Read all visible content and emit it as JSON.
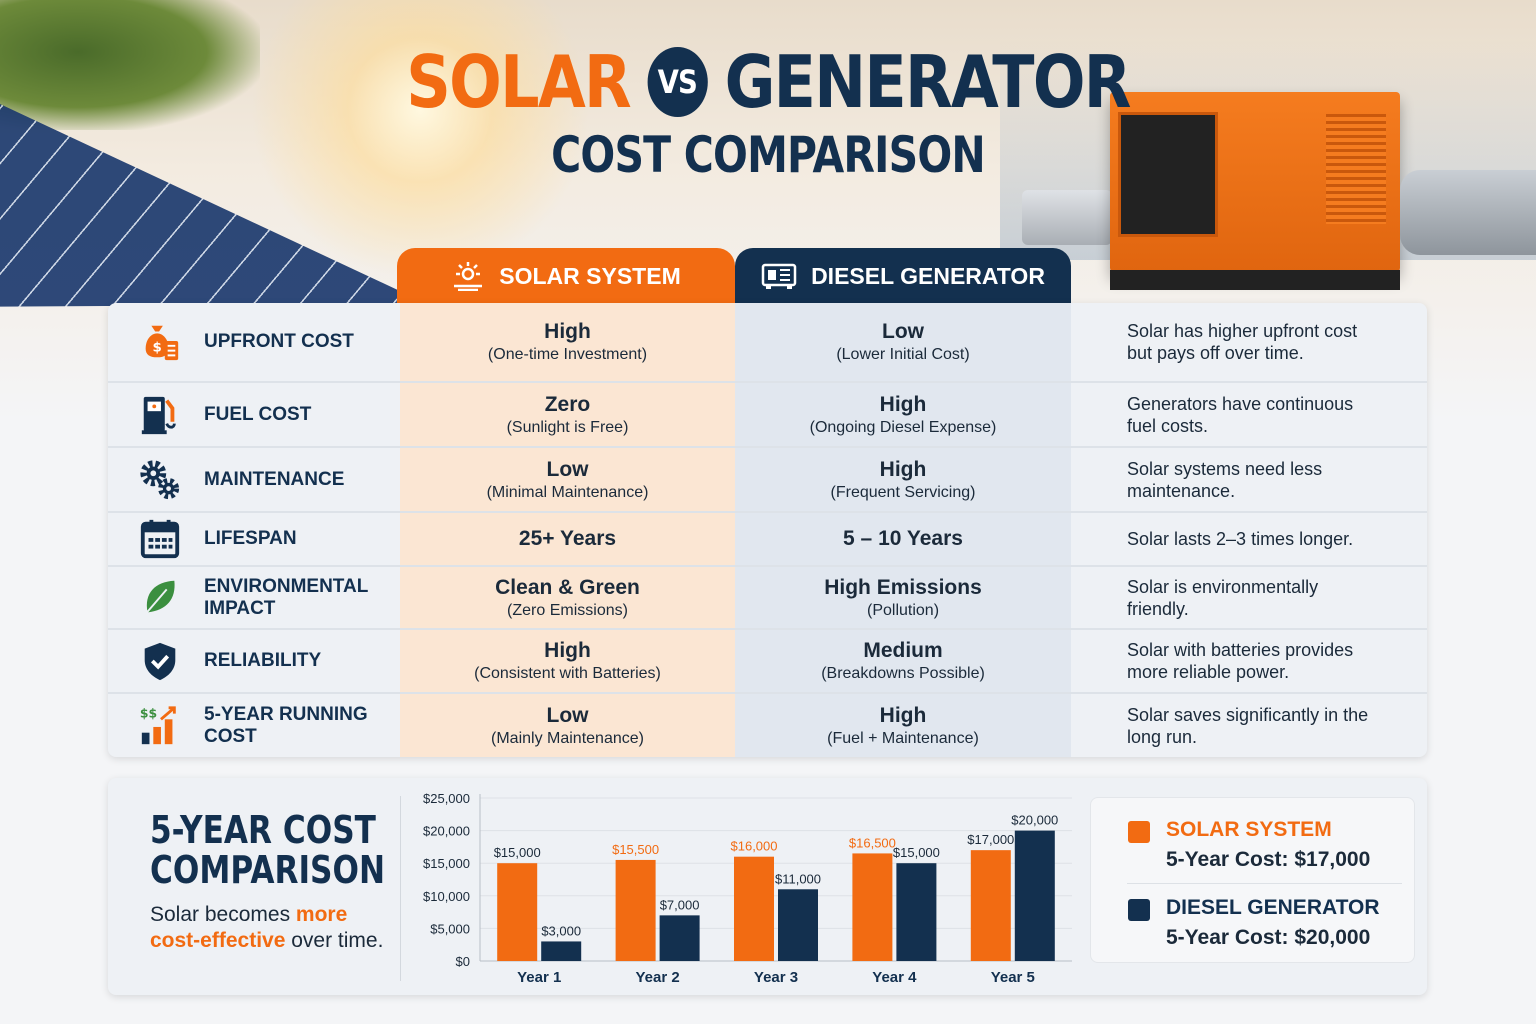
{
  "header": {
    "title_solar": "SOLAR",
    "vs": "VS",
    "title_generator": "GENERATOR",
    "subtitle": "COST COMPARISON"
  },
  "columns": {
    "solar": "SOLAR SYSTEM",
    "diesel": "DIESEL GENERATOR"
  },
  "colors": {
    "solar": "#f26b12",
    "diesel": "#13304f"
  },
  "rows": [
    {
      "icon": "money-bag-icon",
      "label": "UPFRONT COST",
      "solar_main": "High",
      "solar_sub": "(One-time Investment)",
      "diesel_main": "Low",
      "diesel_sub": "(Lower Initial Cost)",
      "note": "Solar has higher upfront cost but pays off over time."
    },
    {
      "icon": "fuel-pump-icon",
      "label": "FUEL COST",
      "solar_main": "Zero",
      "solar_sub": "(Sunlight is Free)",
      "diesel_main": "High",
      "diesel_sub": "(Ongoing Diesel Expense)",
      "note": "Generators have continuous fuel costs."
    },
    {
      "icon": "gears-icon",
      "label": "MAINTENANCE",
      "solar_main": "Low",
      "solar_sub": "(Minimal Maintenance)",
      "diesel_main": "High",
      "diesel_sub": "(Frequent Servicing)",
      "note": "Solar systems need less maintenance."
    },
    {
      "icon": "calendar-icon",
      "label": "LIFESPAN",
      "solar_main": "25+ Years",
      "solar_sub": "",
      "diesel_main": "5 – 10 Years",
      "diesel_sub": "",
      "note": "Solar lasts 2–3 times longer."
    },
    {
      "icon": "leaf-icon",
      "label": "ENVIRONMENTAL IMPACT",
      "solar_main": "Clean & Green",
      "solar_sub": "(Zero Emissions)",
      "diesel_main": "High Emissions",
      "diesel_sub": "(Pollution)",
      "note": "Solar is environmentally friendly."
    },
    {
      "icon": "shield-check-icon",
      "label": "RELIABILITY",
      "solar_main": "High",
      "solar_sub": "(Consistent with Batteries)",
      "diesel_main": "Medium",
      "diesel_sub": "(Breakdowns Possible)",
      "note": "Solar with batteries provides more reliable power."
    },
    {
      "icon": "growth-chart-icon",
      "label": "5-YEAR RUNNING COST",
      "solar_main": "Low",
      "solar_sub": "(Mainly Maintenance)",
      "diesel_main": "High",
      "diesel_sub": "(Fuel + Maintenance)",
      "note": "Solar saves significantly in the long run."
    }
  ],
  "summary": {
    "title_line1": "5-YEAR COST",
    "title_line2": "COMPARISON",
    "text_pre": "Solar becomes ",
    "text_hl1": "more",
    "text_hl2": "cost-effective",
    "text_post": " over time."
  },
  "legend": {
    "solar_name": "SOLAR SYSTEM",
    "solar_value": "5-Year Cost: $17,000",
    "diesel_name": "DIESEL GENERATOR",
    "diesel_value": "5-Year Cost: $20,000"
  },
  "chart_data": {
    "type": "bar",
    "categories": [
      "Year 1",
      "Year 2",
      "Year 3",
      "Year 4",
      "Year 5"
    ],
    "series": [
      {
        "name": "SOLAR SYSTEM",
        "values": [
          15000,
          15500,
          16000,
          16500,
          17000
        ],
        "labels": [
          "$15,000",
          "$15,500",
          "$16,000",
          "$16,500",
          "$17,000"
        ]
      },
      {
        "name": "DIESEL GENERATOR",
        "values": [
          3000,
          7000,
          11000,
          15000,
          20000
        ],
        "labels": [
          "$3,000",
          "$7,000",
          "$11,000",
          "$15,000",
          "$20,000"
        ]
      }
    ],
    "yticks": [
      "$0",
      "$5,000",
      "$10,000",
      "$15,000",
      "$20,000",
      "$25,000"
    ],
    "ylim": [
      0,
      25000
    ],
    "grid": true
  }
}
